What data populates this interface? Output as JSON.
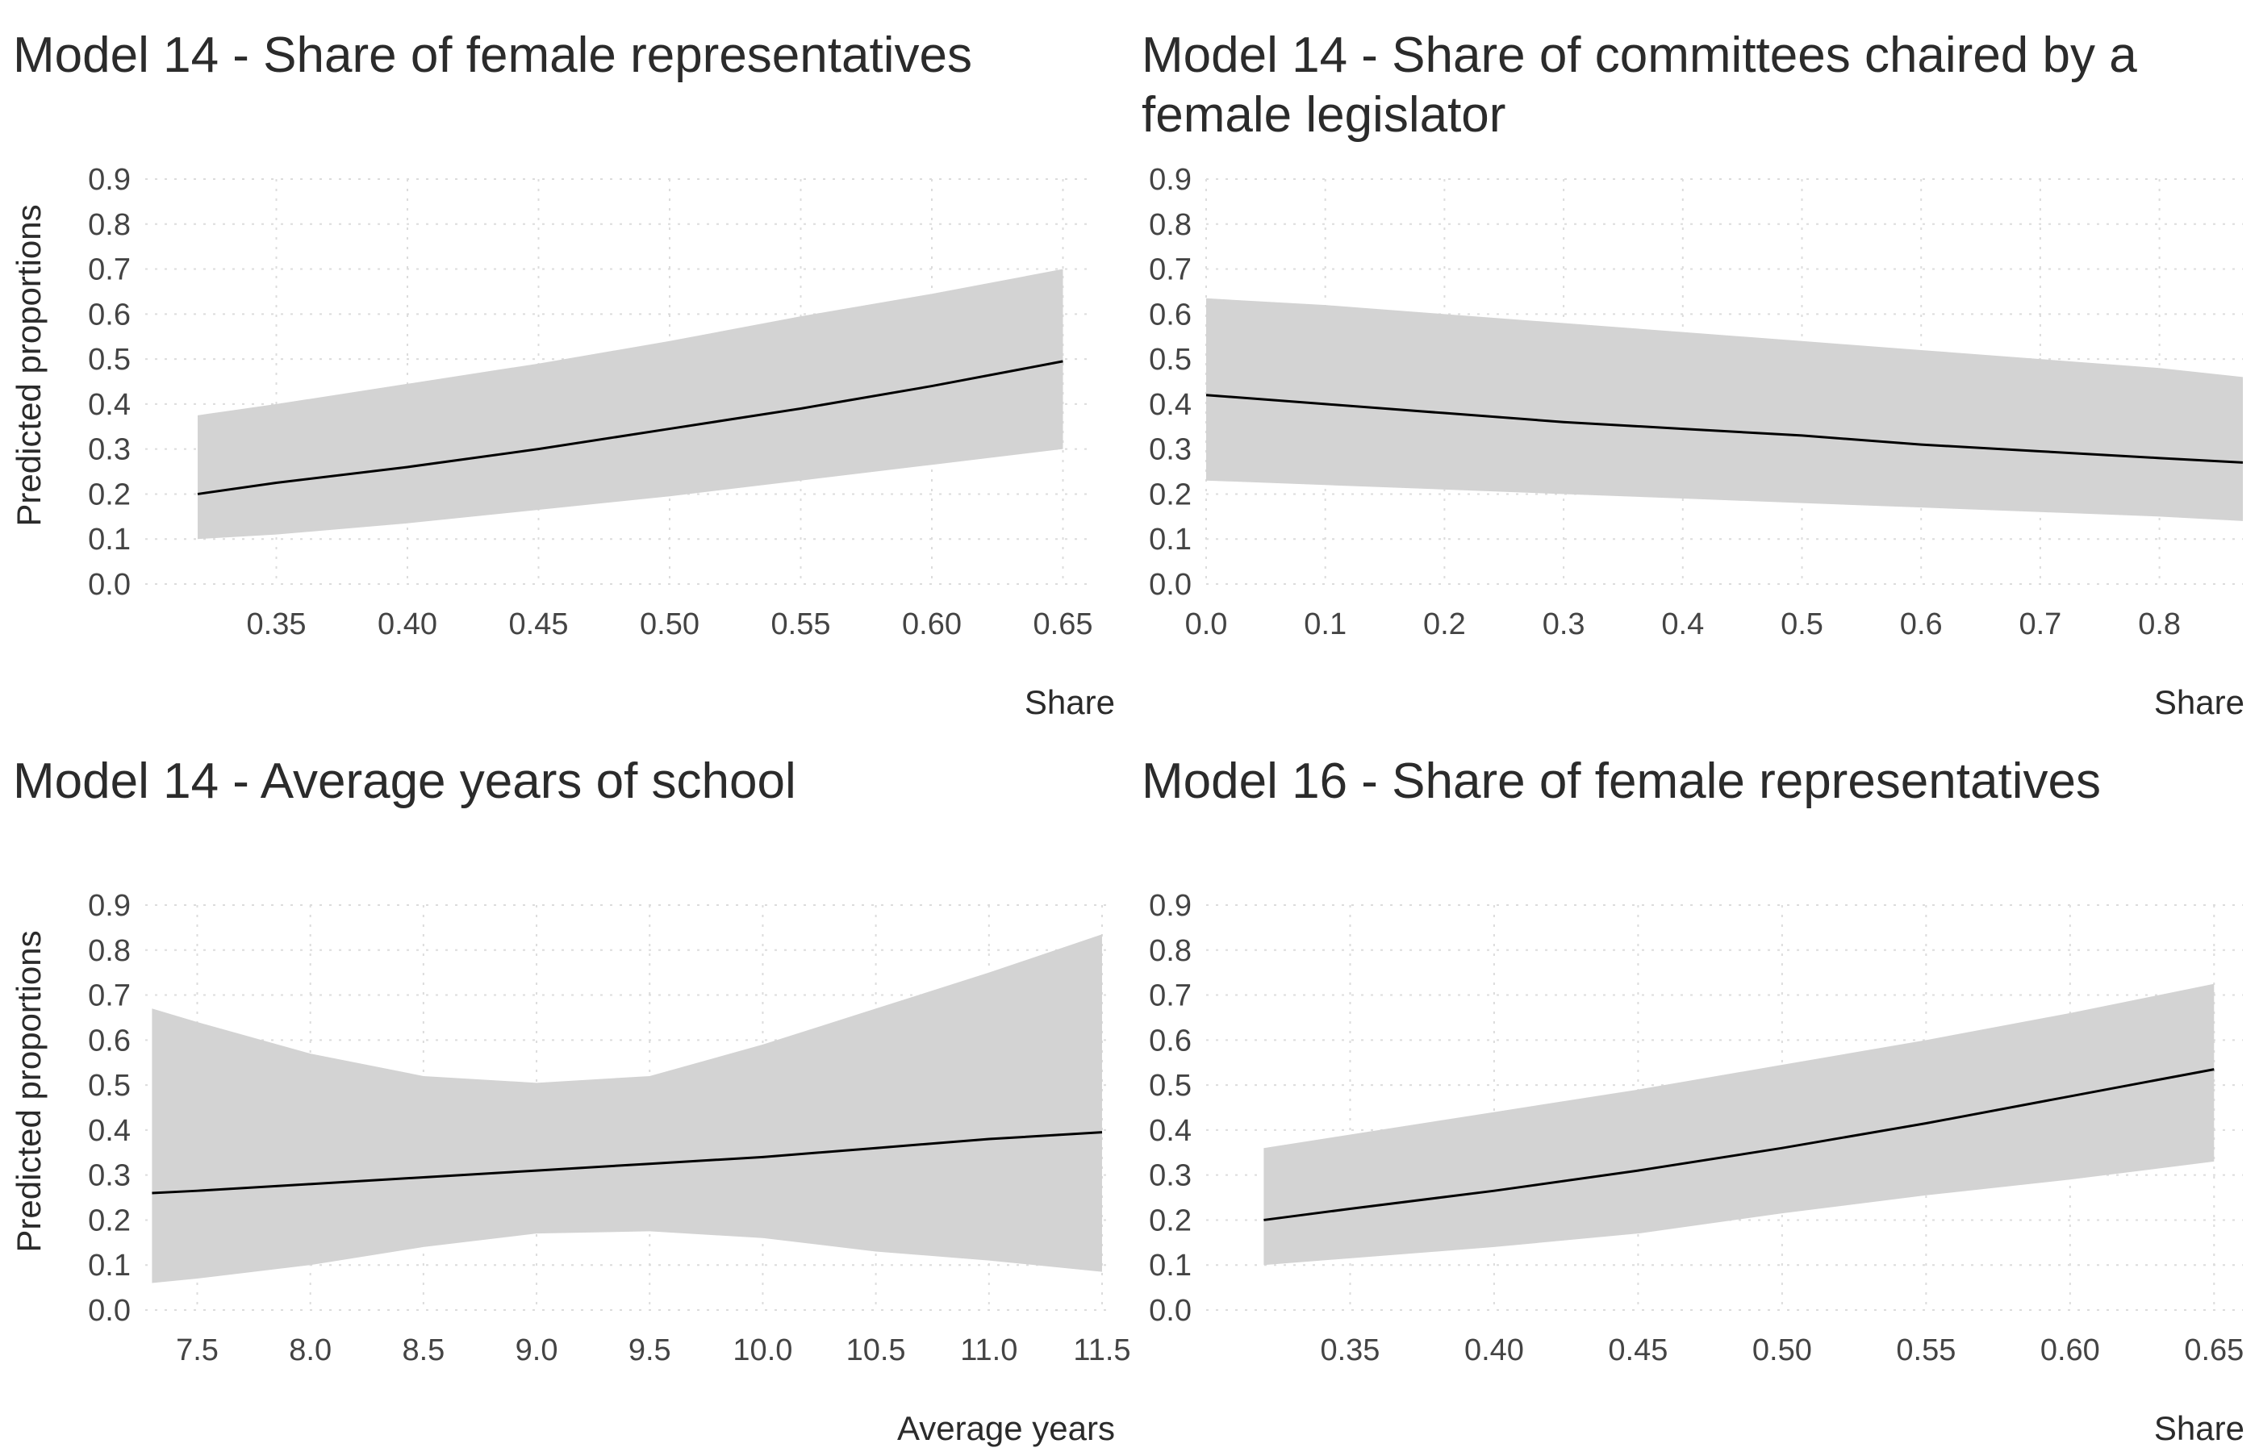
{
  "chart_data": [
    {
      "type": "line",
      "title": "Model 14 - Share of female representatives",
      "xlabel": "Share",
      "ylabel": "Predicted proportions",
      "xlim": [
        0.3,
        0.66
      ],
      "ylim": [
        0,
        0.9
      ],
      "xticks": [
        0.35,
        0.4,
        0.45,
        0.5,
        0.55,
        0.6,
        0.65
      ],
      "xtick_labels": [
        "0.35",
        "0.40",
        "0.45",
        "0.50",
        "0.55",
        "0.60",
        "0.65"
      ],
      "yticks": [
        0,
        0.1,
        0.2,
        0.3,
        0.4,
        0.5,
        0.6,
        0.7,
        0.8,
        0.9
      ],
      "ytick_labels": [
        "0.0",
        "0.1",
        "0.2",
        "0.3",
        "0.4",
        "0.5",
        "0.6",
        "0.7",
        "0.8",
        "0.9"
      ],
      "grid": true,
      "band_color": "#d3d3d3",
      "line_color": "#000000",
      "series": [
        {
          "x": [
            0.32,
            0.35,
            0.4,
            0.45,
            0.5,
            0.55,
            0.6,
            0.65
          ],
          "y": [
            0.2,
            0.225,
            0.26,
            0.3,
            0.345,
            0.39,
            0.44,
            0.495
          ],
          "lower": [
            0.1,
            0.11,
            0.135,
            0.165,
            0.195,
            0.23,
            0.265,
            0.3
          ],
          "upper": [
            0.375,
            0.4,
            0.445,
            0.49,
            0.54,
            0.595,
            0.645,
            0.7
          ]
        }
      ]
    },
    {
      "type": "line",
      "title": "Model 14 - Share of committees chaired by a female legislator",
      "xlabel": "Share",
      "ylabel": "",
      "xlim": [
        0,
        0.87
      ],
      "ylim": [
        0,
        0.9
      ],
      "xticks": [
        0,
        0.1,
        0.2,
        0.3,
        0.4,
        0.5,
        0.6,
        0.7,
        0.8
      ],
      "xtick_labels": [
        "0.0",
        "0.1",
        "0.2",
        "0.3",
        "0.4",
        "0.5",
        "0.6",
        "0.7",
        "0.8"
      ],
      "yticks": [
        0,
        0.1,
        0.2,
        0.3,
        0.4,
        0.5,
        0.6,
        0.7,
        0.8,
        0.9
      ],
      "ytick_labels": [
        "0.0",
        "0.1",
        "0.2",
        "0.3",
        "0.4",
        "0.5",
        "0.6",
        "0.7",
        "0.8",
        "0.9"
      ],
      "grid": true,
      "band_color": "#d3d3d3",
      "line_color": "#000000",
      "series": [
        {
          "x": [
            0,
            0.1,
            0.2,
            0.3,
            0.4,
            0.5,
            0.6,
            0.7,
            0.8,
            0.87
          ],
          "y": [
            0.42,
            0.4,
            0.38,
            0.36,
            0.345,
            0.33,
            0.31,
            0.295,
            0.28,
            0.27
          ],
          "lower": [
            0.23,
            0.22,
            0.21,
            0.2,
            0.19,
            0.18,
            0.17,
            0.16,
            0.15,
            0.14
          ],
          "upper": [
            0.635,
            0.62,
            0.6,
            0.58,
            0.56,
            0.54,
            0.52,
            0.5,
            0.48,
            0.46
          ]
        }
      ]
    },
    {
      "type": "line",
      "title": "Model 14 - Average years of school",
      "xlabel": "Average years",
      "ylabel": "Predicted proportions",
      "xlim": [
        7.27,
        11.55
      ],
      "ylim": [
        0,
        0.9
      ],
      "xticks": [
        7.5,
        8.0,
        8.5,
        9.0,
        9.5,
        10.0,
        10.5,
        11.0,
        11.5
      ],
      "xtick_labels": [
        "7.5",
        "8.0",
        "8.5",
        "9.0",
        "9.5",
        "10.0",
        "10.5",
        "11.0",
        "11.5"
      ],
      "yticks": [
        0,
        0.1,
        0.2,
        0.3,
        0.4,
        0.5,
        0.6,
        0.7,
        0.8,
        0.9
      ],
      "ytick_labels": [
        "0.0",
        "0.1",
        "0.2",
        "0.3",
        "0.4",
        "0.5",
        "0.6",
        "0.7",
        "0.8",
        "0.9"
      ],
      "grid": true,
      "band_color": "#d3d3d3",
      "line_color": "#000000",
      "series": [
        {
          "x": [
            7.3,
            7.5,
            8.0,
            8.5,
            9.0,
            9.5,
            10.0,
            10.5,
            11.0,
            11.5
          ],
          "y": [
            0.26,
            0.265,
            0.28,
            0.295,
            0.31,
            0.325,
            0.34,
            0.36,
            0.38,
            0.395
          ],
          "lower": [
            0.06,
            0.07,
            0.1,
            0.14,
            0.17,
            0.175,
            0.16,
            0.13,
            0.11,
            0.085
          ],
          "upper": [
            0.67,
            0.64,
            0.57,
            0.52,
            0.505,
            0.52,
            0.59,
            0.67,
            0.75,
            0.835
          ]
        }
      ]
    },
    {
      "type": "line",
      "title": "Model 16 - Share of female representatives",
      "xlabel": "Share",
      "ylabel": "",
      "xlim": [
        0.3,
        0.66
      ],
      "ylim": [
        0,
        0.9
      ],
      "xticks": [
        0.35,
        0.4,
        0.45,
        0.5,
        0.55,
        0.6,
        0.65
      ],
      "xtick_labels": [
        "0.35",
        "0.40",
        "0.45",
        "0.50",
        "0.55",
        "0.60",
        "0.65"
      ],
      "yticks": [
        0,
        0.1,
        0.2,
        0.3,
        0.4,
        0.5,
        0.6,
        0.7,
        0.8,
        0.9
      ],
      "ytick_labels": [
        "0.0",
        "0.1",
        "0.2",
        "0.3",
        "0.4",
        "0.5",
        "0.6",
        "0.7",
        "0.8",
        "0.9"
      ],
      "grid": true,
      "band_color": "#d3d3d3",
      "line_color": "#000000",
      "series": [
        {
          "x": [
            0.32,
            0.35,
            0.4,
            0.45,
            0.5,
            0.55,
            0.6,
            0.65
          ],
          "y": [
            0.2,
            0.225,
            0.265,
            0.31,
            0.36,
            0.415,
            0.475,
            0.535
          ],
          "lower": [
            0.1,
            0.115,
            0.14,
            0.17,
            0.215,
            0.255,
            0.29,
            0.33
          ],
          "upper": [
            0.36,
            0.39,
            0.44,
            0.49,
            0.545,
            0.6,
            0.66,
            0.725
          ]
        }
      ]
    }
  ]
}
